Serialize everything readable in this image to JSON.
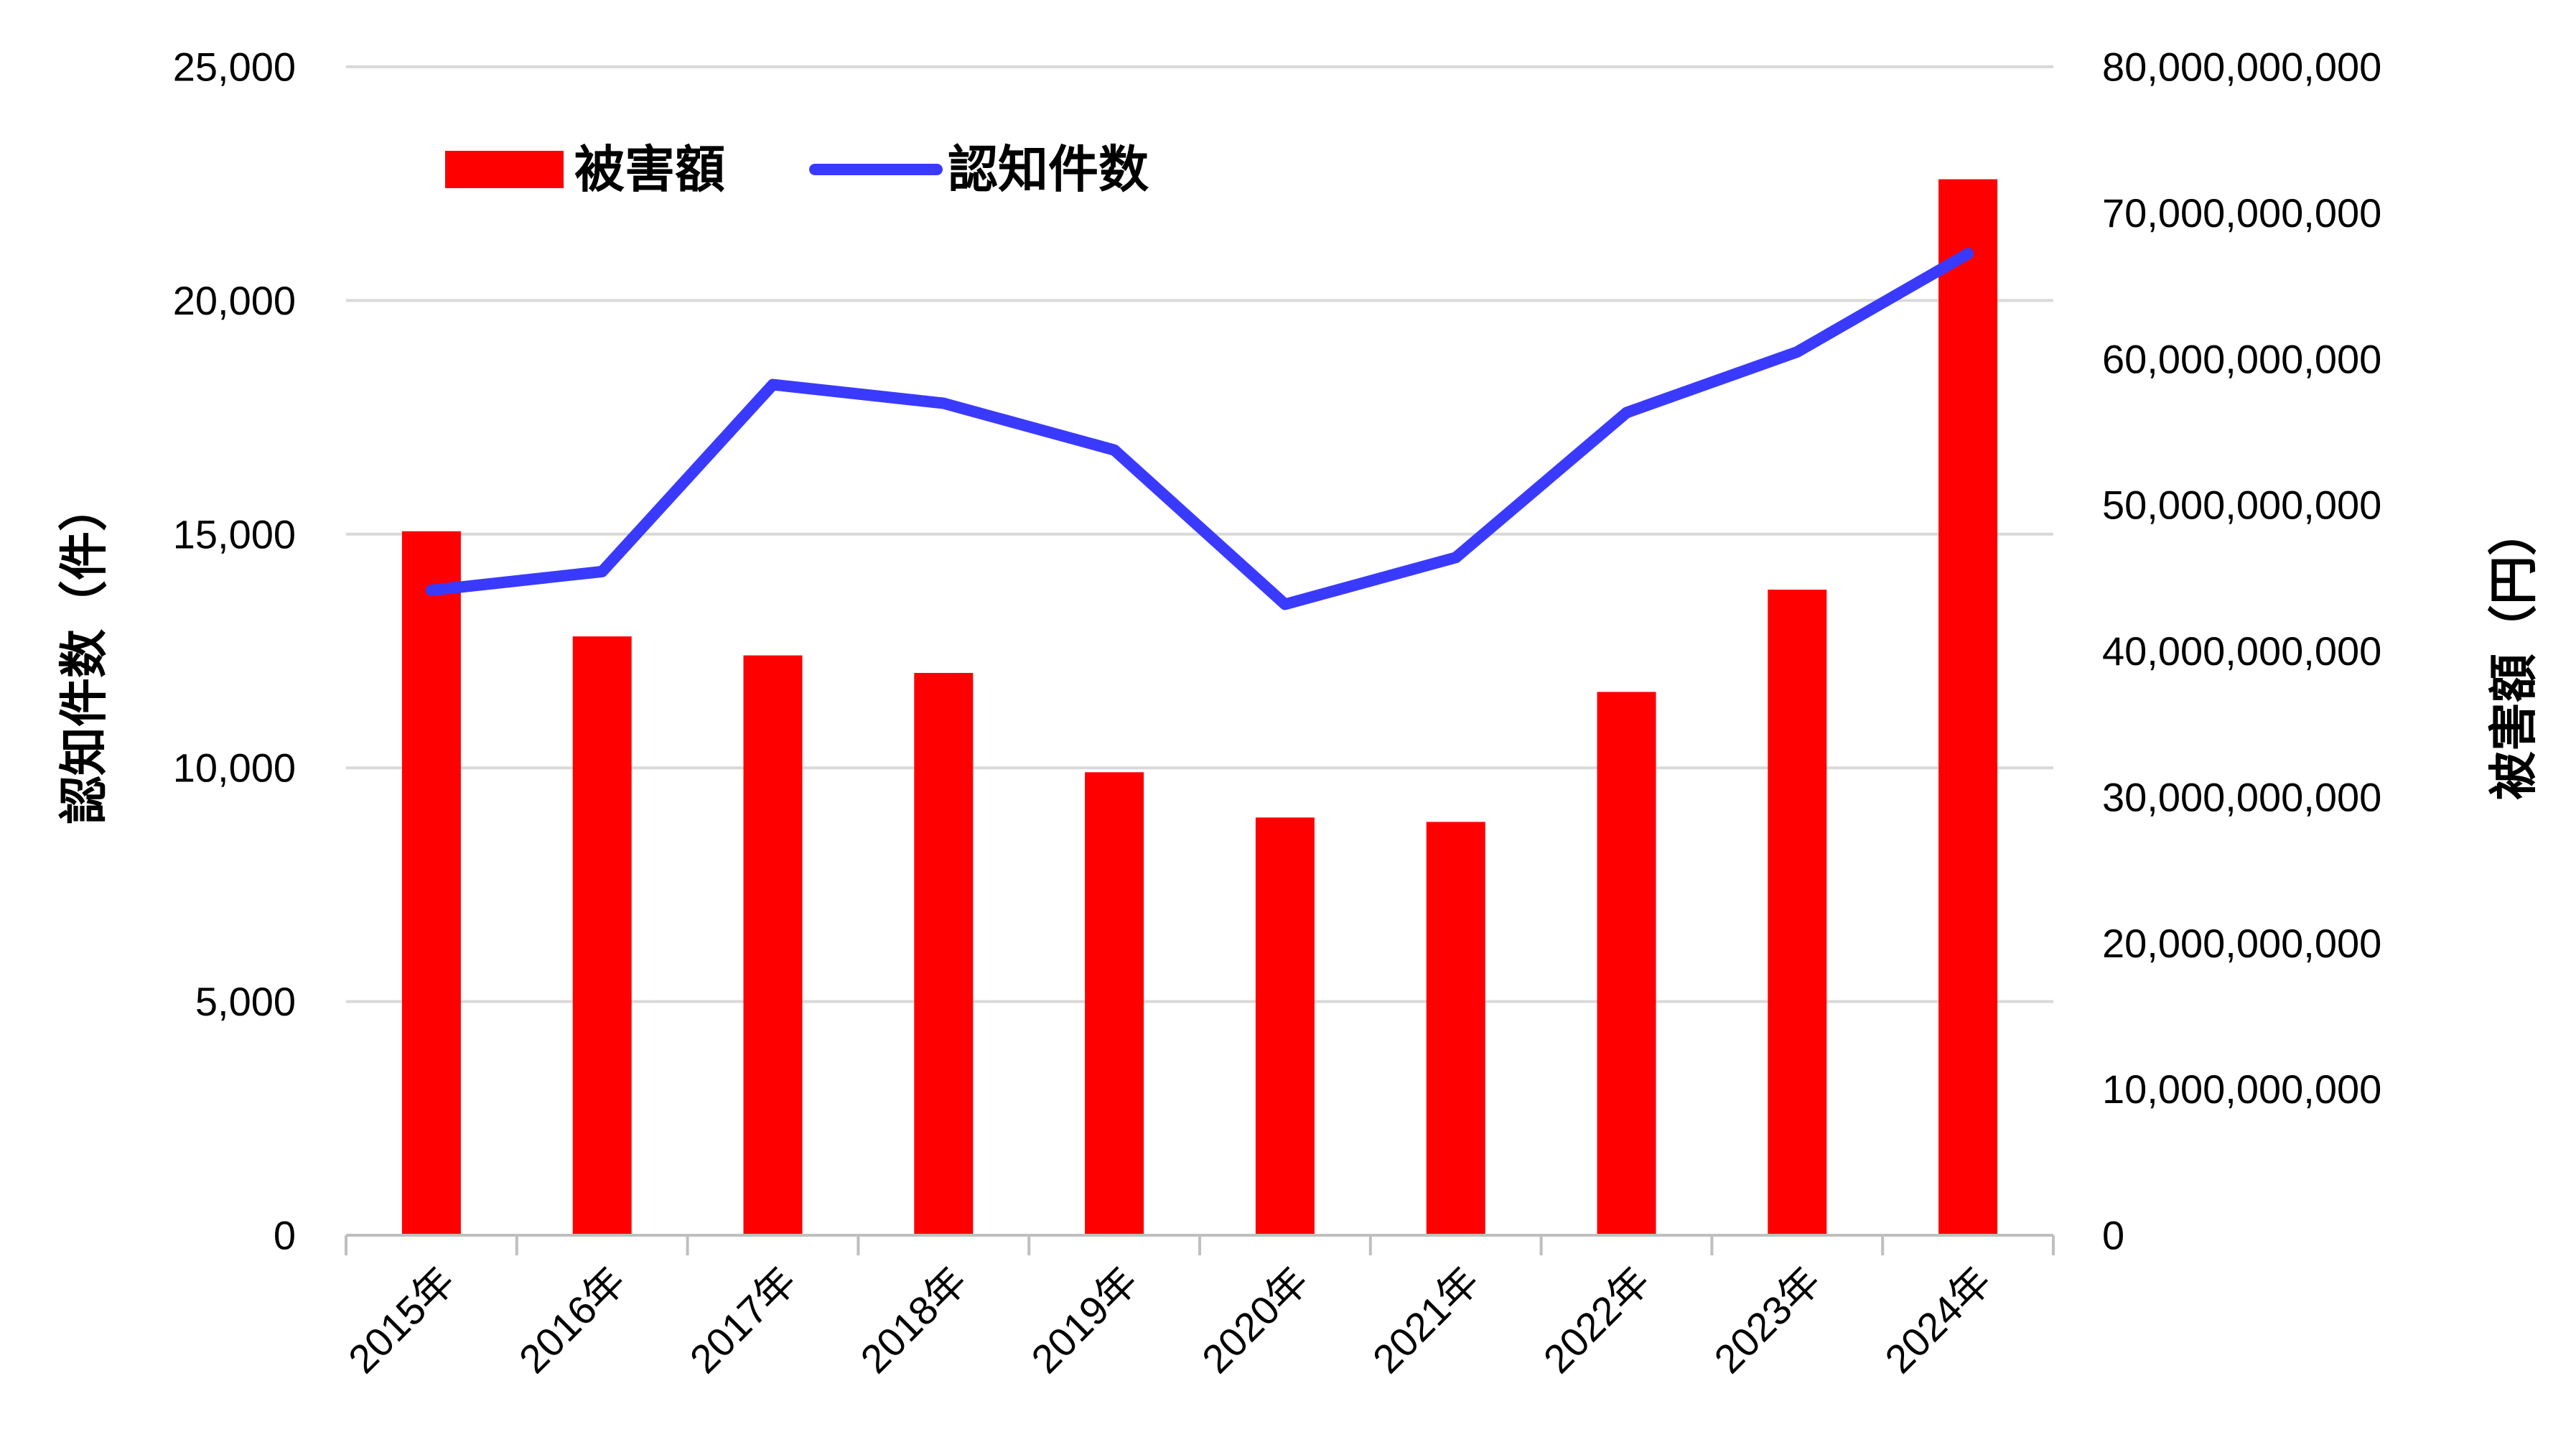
{
  "chart_data": {
    "type": "bar",
    "categories": [
      "2015年",
      "2016年",
      "2017年",
      "2018年",
      "2019年",
      "2020年",
      "2021年",
      "2022年",
      "2023年",
      "2024年"
    ],
    "series": [
      {
        "name": "被害額",
        "kind": "bar",
        "axis": "right",
        "color": "#ff0000",
        "values": [
          48200000000,
          41000000000,
          39700000000,
          38500000000,
          31700000000,
          28600000000,
          28300000000,
          37200000000,
          44200000000,
          72300000000
        ]
      },
      {
        "name": "認知件数",
        "kind": "line",
        "axis": "left",
        "color": "#3a3aff",
        "values": [
          13800,
          14200,
          18200,
          17800,
          16800,
          13500,
          14500,
          17600,
          18900,
          21000
        ]
      }
    ],
    "left_axis": {
      "title": "認知件数（件）",
      "range": [
        0,
        25000
      ],
      "ticks": [
        0,
        5000,
        10000,
        15000,
        20000,
        25000
      ],
      "tick_labels": [
        "0",
        "5,000",
        "10,000",
        "15,000",
        "20,000",
        "25,000"
      ]
    },
    "right_axis": {
      "title": "被害額（円）",
      "range": [
        0,
        80000000000
      ],
      "ticks": [
        0,
        10000000000,
        20000000000,
        30000000000,
        40000000000,
        50000000000,
        60000000000,
        70000000000,
        80000000000
      ],
      "tick_labels": [
        "0",
        "10,000,000,000",
        "20,000,000,000",
        "30,000,000,000",
        "40,000,000,000",
        "50,000,000,000",
        "60,000,000,000",
        "70,000,000,000",
        "80,000,000,000"
      ]
    },
    "grid": true,
    "legend_position": "top-left"
  }
}
